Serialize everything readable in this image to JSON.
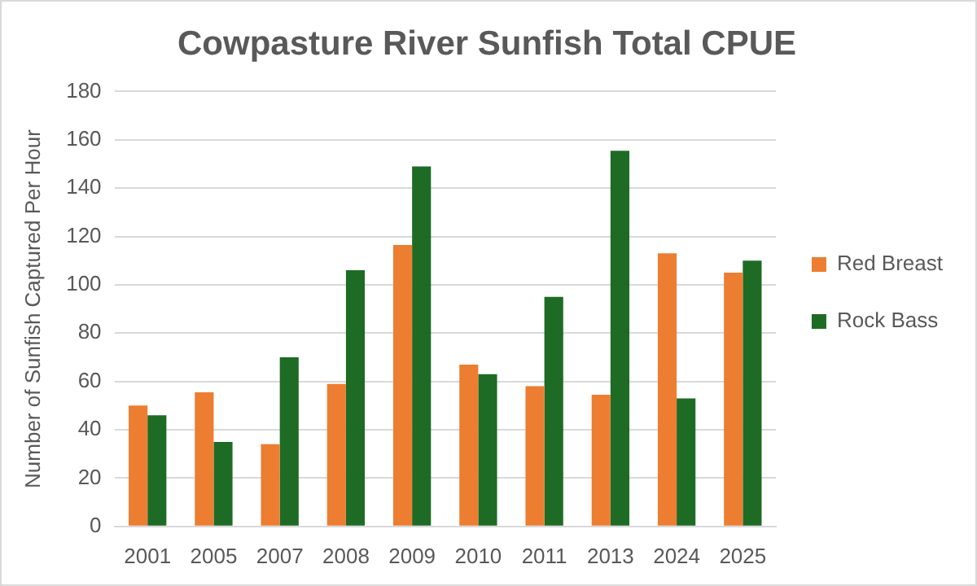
{
  "chart_data": {
    "type": "bar",
    "title": "Cowpasture River Sunfish Total CPUE",
    "ylabel": "Number of Sunfish Captured Per Hour",
    "categories": [
      "2001",
      "2005",
      "2007",
      "2008",
      "2009",
      "2010",
      "2011",
      "2013",
      "2024",
      "2025"
    ],
    "series": [
      {
        "name": "Red Breast",
        "color": "#ed7d31",
        "values": [
          50,
          55.5,
          34,
          59,
          116.5,
          67,
          58,
          54.5,
          113,
          105
        ]
      },
      {
        "name": "Rock Bass",
        "color": "#1e6b25",
        "values": [
          46,
          35,
          70,
          106,
          149,
          63,
          95,
          155.5,
          53,
          110
        ]
      }
    ],
    "ylim": [
      0,
      180
    ],
    "yticks": [
      0,
      20,
      40,
      60,
      80,
      100,
      120,
      140,
      160,
      180
    ],
    "grid": "y",
    "legend": "right"
  }
}
